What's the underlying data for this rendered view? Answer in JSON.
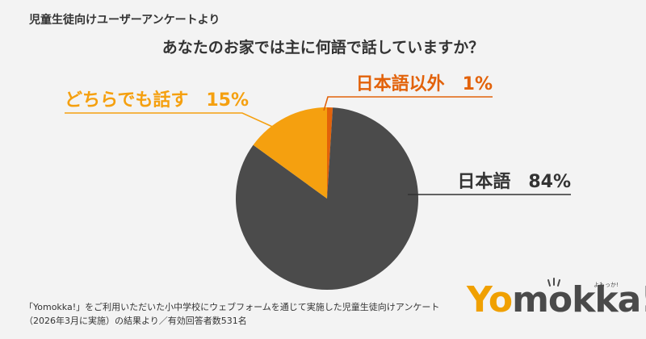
{
  "header": {
    "survey_label": "児童生徒向けユーザーアンケートより",
    "title": "あなたのお家では主に何語で話していますか？"
  },
  "chart_data": {
    "type": "pie",
    "title": "あなたのお家では主に何語で話していますか？",
    "slices": [
      {
        "label": "日本語",
        "value": 84,
        "display": "日本語　84%",
        "color": "#4b4b4b",
        "text_color": "#333333"
      },
      {
        "label": "どちらでも話す",
        "value": 15,
        "display": "どちらでも話す　15%",
        "color": "#f5a00f",
        "text_color": "#f5a00f"
      },
      {
        "label": "日本語以外",
        "value": 1,
        "display": "日本語以外　1%",
        "color": "#e2620a",
        "text_color": "#e2620a"
      }
    ],
    "start": "12 o'clock",
    "direction": "clockwise"
  },
  "footnote": {
    "line1": "「Yomokka!」をご利用いただいた小中学校にウェブフォームを通じて実施した児童生徒向けアンケート",
    "line2": "（2026年3月に実施）の結果より／有効回答者数531名"
  },
  "logo": {
    "word_yo": "Yo",
    "word_mokka": "mokka!",
    "tagline": "よもっか!",
    "brand_color": "#f0a000"
  }
}
